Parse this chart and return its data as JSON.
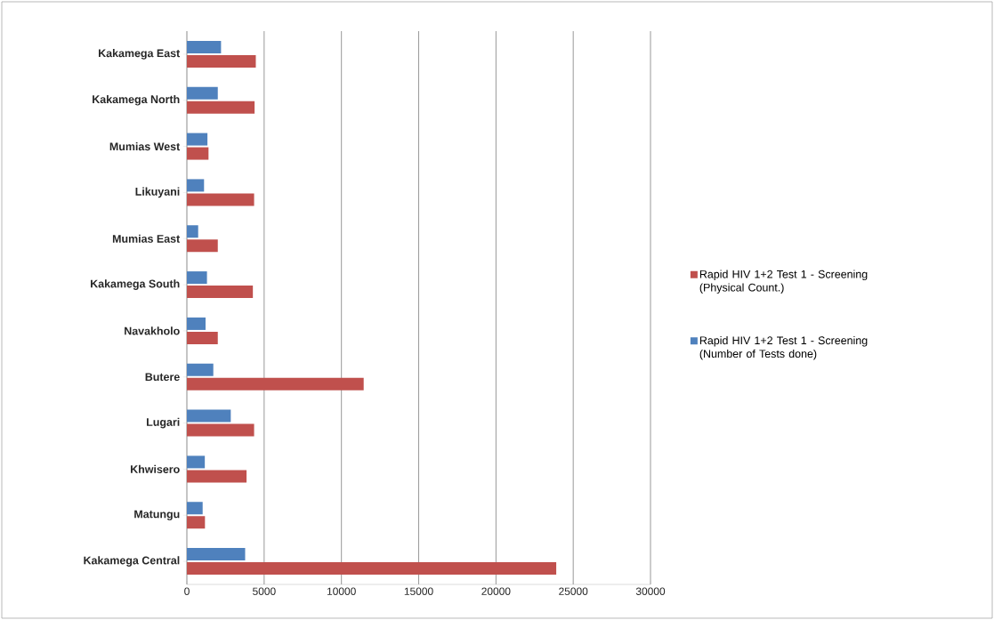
{
  "chart_data": {
    "type": "bar",
    "orientation": "horizontal",
    "categories": [
      "Kakamega East",
      "Kakamega North",
      "Mumias West",
      "Likuyani",
      "Mumias East",
      "Kakamega South",
      "Navakholo",
      "Butere",
      "Lugari",
      "Khwisero",
      "Matungu",
      "Kakamega Central"
    ],
    "series": [
      {
        "name": "Rapid HIV 1+2 Test 1 - Screening (Physical Count.)",
        "color": "#c0504d",
        "values": [
          4460,
          4380,
          1400,
          4350,
          2000,
          4270,
          2000,
          11440,
          4350,
          3860,
          1170,
          23900
        ]
      },
      {
        "name": "Rapid HIV 1+2 Test 1 - Screening (Number of Tests done)",
        "color": "#4f81bd",
        "values": [
          2210,
          2000,
          1330,
          1110,
          730,
          1300,
          1210,
          1710,
          2840,
          1160,
          1020,
          3770
        ]
      }
    ],
    "xlim": [
      0,
      30000
    ],
    "xticks": [
      0,
      5000,
      10000,
      15000,
      20000,
      25000,
      30000
    ],
    "grid": "x",
    "legend": "right"
  }
}
